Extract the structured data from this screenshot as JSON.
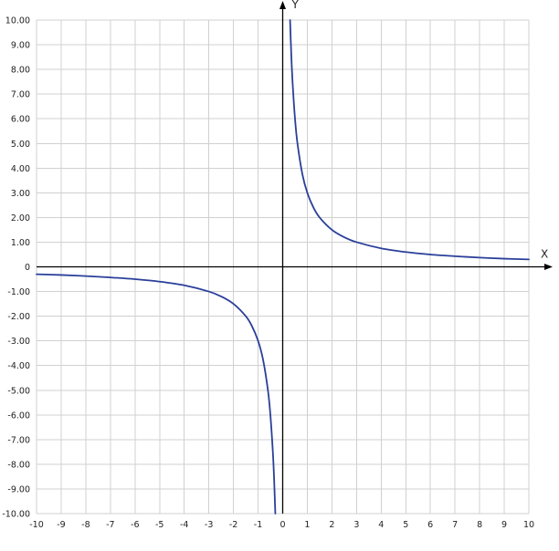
{
  "chart_data": {
    "type": "line",
    "title": "",
    "xlabel": "X",
    "ylabel": "Y",
    "xlim": [
      -10,
      10
    ],
    "ylim": [
      -10,
      10
    ],
    "grid": true,
    "x_ticks": [
      -10,
      -9,
      -8,
      -7,
      -6,
      -5,
      -4,
      -3,
      -2,
      -1,
      0,
      1,
      2,
      3,
      4,
      5,
      6,
      7,
      8,
      9,
      10
    ],
    "x_tick_labels": [
      "-10",
      "-9",
      "-8",
      "-7",
      "-6",
      "-5",
      "-4",
      "-3",
      "-2",
      "-1",
      "0",
      "1",
      "2",
      "3",
      "4",
      "5",
      "6",
      "7",
      "8",
      "9",
      "10"
    ],
    "y_ticks": [
      10,
      9,
      8,
      7,
      6,
      5,
      4,
      3,
      2,
      1,
      0,
      -1,
      -2,
      -3,
      -4,
      -5,
      -6,
      -7,
      -8,
      -9,
      -10
    ],
    "y_tick_labels": [
      "10.00",
      "9.00",
      "8.00",
      "7.00",
      "6.00",
      "5.00",
      "4.00",
      "3.00",
      "2.00",
      "1.00",
      "0",
      "-1.00",
      "-2.00",
      "-3.00",
      "-4.00",
      "-5.00",
      "-6.00",
      "-7.00",
      "-8.00",
      "-9.00",
      "-10.00"
    ],
    "series": [
      {
        "color": "#2a3f9a",
        "branches": [
          {
            "x": [
              -10,
              -9,
              -8,
              -7,
              -6,
              -5,
              -4,
              -3,
              -2.5,
              -2,
              -1.5,
              -1.25,
              -1,
              -0.8,
              -0.6,
              -0.5,
              -0.4,
              -0.35,
              -0.3
            ],
            "y": [
              -0.3,
              -0.33,
              -0.375,
              -0.43,
              -0.5,
              -0.6,
              -0.75,
              -1,
              -1.2,
              -1.5,
              -2,
              -2.4,
              -3,
              -3.75,
              -5,
              -6,
              -7.5,
              -8.57,
              -10
            ]
          },
          {
            "x": [
              0.3,
              0.35,
              0.4,
              0.5,
              0.6,
              0.8,
              1,
              1.25,
              1.5,
              2,
              2.5,
              3,
              4,
              5,
              6,
              7,
              8,
              9,
              10
            ],
            "y": [
              10,
              8.57,
              7.5,
              6,
              5,
              3.75,
              3,
              2.4,
              2,
              1.5,
              1.2,
              1,
              0.75,
              0.6,
              0.5,
              0.43,
              0.375,
              0.33,
              0.3
            ]
          }
        ]
      }
    ]
  }
}
